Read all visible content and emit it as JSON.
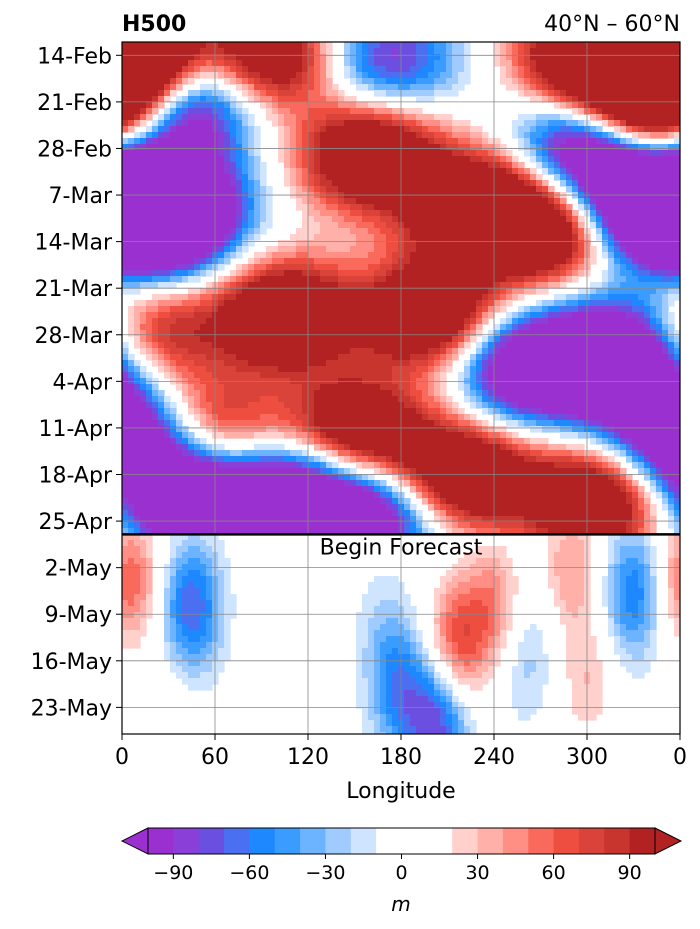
{
  "chart_data": {
    "type": "heatmap",
    "title_left": "H500",
    "title_right": "40°N – 60°N",
    "xlabel": "Longitude",
    "ylabel": "",
    "x_ticks": [
      "0",
      "60",
      "120",
      "180",
      "240",
      "300",
      "0"
    ],
    "x_tick_values": [
      0,
      60,
      120,
      180,
      240,
      300,
      360
    ],
    "xlim": [
      0,
      360
    ],
    "y_ticks": [
      "14-Feb",
      "21-Feb",
      "28-Feb",
      "7-Mar",
      "14-Mar",
      "21-Mar",
      "28-Mar",
      "4-Apr",
      "11-Apr",
      "18-Apr",
      "25-Apr",
      "2-May",
      "9-May",
      "16-May",
      "23-May"
    ],
    "ylim": [
      "12-Feb",
      "27-May"
    ],
    "grid": true,
    "annotation": "Begin Forecast",
    "forecast_start": "27-Apr",
    "colorbar": {
      "label": "m",
      "ticks": [
        "−90",
        "−60",
        "−30",
        "0",
        "30",
        "60",
        "90"
      ],
      "tick_values": [
        -90,
        -60,
        -30,
        0,
        30,
        60,
        90
      ],
      "levels": [
        -100,
        -90,
        -80,
        -70,
        -60,
        -50,
        -40,
        -30,
        -20,
        -10,
        10,
        20,
        30,
        40,
        50,
        60,
        70,
        80,
        90,
        100
      ],
      "extend": "both",
      "colors": [
        "#9b30d0",
        "#8a3fd8",
        "#6b4fe0",
        "#4a6ff0",
        "#1e88ff",
        "#3a9cff",
        "#6cb4ff",
        "#9fcbff",
        "#cfe4ff",
        "#ffffff",
        "#ffffff",
        "#ffd0cc",
        "#ffb0a8",
        "#ff8f84",
        "#f96a5c",
        "#ee4e40",
        "#d9433a",
        "#c8352f",
        "#b22222"
      ],
      "under_color": "#9b30d0",
      "over_color": "#b22222"
    },
    "anomaly_features_m": {
      "note_units": "lon_deg, date, anomaly in m",
      "hindcast": [
        [
          10,
          "15-Feb",
          100
        ],
        [
          40,
          "21-Feb",
          -100
        ],
        [
          95,
          "14-Feb",
          90
        ],
        [
          170,
          "15-Feb",
          -60
        ],
        [
          300,
          "14-Feb",
          100
        ],
        [
          350,
          "14-Feb",
          100
        ],
        [
          15,
          "9-Mar",
          -100
        ],
        [
          160,
          "1-Mar",
          100
        ],
        [
          230,
          "9-Mar",
          100
        ],
        [
          200,
          "25-Mar",
          100
        ],
        [
          105,
          "25-Mar",
          100
        ],
        [
          390,
          "10-Mar",
          -100
        ],
        [
          300,
          "28-Feb",
          -100
        ],
        [
          340,
          "22-Feb",
          100
        ],
        [
          330,
          "9-Mar",
          -100
        ],
        [
          280,
          "12-Mar",
          100
        ],
        [
          20,
          "28-Mar",
          60
        ],
        [
          10,
          "15-Apr",
          -80
        ],
        [
          60,
          "12-Apr",
          70
        ],
        [
          150,
          "12-Apr",
          100
        ],
        [
          110,
          "20-Apr",
          -90
        ],
        [
          220,
          "18-Apr",
          100
        ],
        [
          260,
          "2-Apr",
          -100
        ],
        [
          320,
          "31-Mar",
          -100
        ],
        [
          305,
          "22-Apr",
          100
        ],
        [
          50,
          "22-Apr",
          -100
        ],
        [
          160,
          "24-Apr",
          -90
        ],
        [
          345,
          "8-Apr",
          -60
        ]
      ],
      "forecast": [
        [
          5,
          "4-May",
          60
        ],
        [
          45,
          "8-May",
          -70
        ],
        [
          105,
          "7-May",
          20
        ],
        [
          170,
          "12-May",
          -20
        ],
        [
          205,
          "25-May",
          -80
        ],
        [
          180,
          "21-May",
          -50
        ],
        [
          215,
          "14-May",
          70
        ],
        [
          260,
          "15-May",
          -30
        ],
        [
          240,
          "8-May",
          50
        ],
        [
          300,
          "19-May",
          30
        ],
        [
          330,
          "6-May",
          -60
        ],
        [
          30,
          "24-May",
          10
        ],
        [
          290,
          "2-May",
          40
        ]
      ]
    }
  }
}
